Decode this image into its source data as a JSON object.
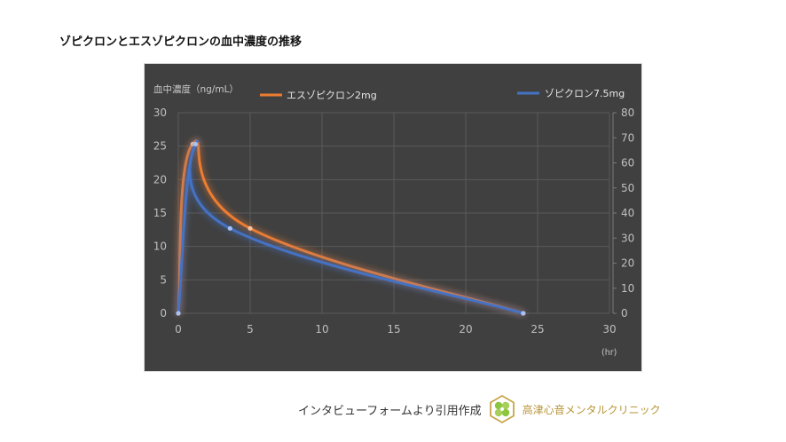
{
  "page": {
    "title": "ゾピクロンとエスゾピクロンの血中濃度の推移"
  },
  "chart_data": {
    "type": "line",
    "title": "ゾピクロンとエスゾピクロンの血中濃度の推移",
    "ylabel": "血中濃度（ng/mL）",
    "xlabel": "(hr)",
    "xlim": [
      0,
      30
    ],
    "ylim": [
      0,
      30
    ],
    "y2lim": [
      0,
      80
    ],
    "x_ticks": [
      "0",
      "5",
      "10",
      "15",
      "20",
      "25",
      "30"
    ],
    "y_ticks": [
      "0",
      "5",
      "10",
      "15",
      "20",
      "25",
      "30"
    ],
    "y2_ticks": [
      "0",
      "10",
      "20",
      "30",
      "40",
      "50",
      "60",
      "70",
      "80"
    ],
    "grid": true,
    "legend_position": "top",
    "series": [
      {
        "name": "エスゾピクロン2mg",
        "color": "#ed7d31",
        "smooth": true,
        "points": [
          [
            0,
            0
          ],
          [
            1.0,
            25.3
          ],
          [
            5.0,
            12.7
          ],
          [
            24.0,
            0
          ]
        ]
      },
      {
        "name": "ゾピクロン7.5mg",
        "color": "#4472c4",
        "smooth": true,
        "points": [
          [
            0,
            0
          ],
          [
            1.2,
            25.3
          ],
          [
            3.6,
            12.7
          ],
          [
            24.0,
            0
          ]
        ]
      }
    ]
  },
  "legend": {
    "eszopiclone": "エスゾピクロン2mg",
    "zopiclone": "ゾピクロン7.5mg"
  },
  "axes": {
    "y_label": "血中濃度（ng/mL）",
    "x_unit": "(hr)"
  },
  "footer": {
    "source_text": "インタビューフォームより引用作成",
    "clinic_name": "高津心音メンタルクリニック",
    "logo_icon": "clover-hexagon-logo"
  },
  "colors": {
    "panel_bg": "#404040",
    "grid": "#5a5a5a",
    "axis_text": "#bfbfbf",
    "orange": "#ed7d31",
    "blue": "#4472c4",
    "clinic_gold": "#b8963a",
    "logo_green": "#8cc63f"
  }
}
